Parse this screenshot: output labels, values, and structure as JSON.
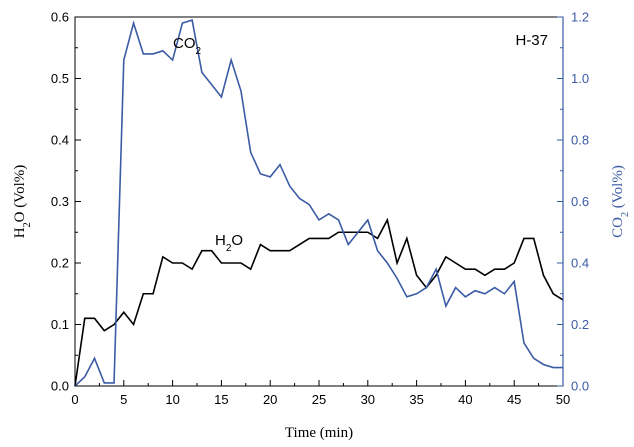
{
  "chart_data": {
    "type": "line",
    "title": "",
    "panel_label": "H-37",
    "xlabel": "Time (min)",
    "ylabel_left": {
      "main": "H",
      "sub": "2",
      "rest": "O (Vol%)"
    },
    "ylabel_right": {
      "main": "CO",
      "sub": "2",
      "rest": " (Vol%)"
    },
    "xlim": [
      0,
      50
    ],
    "ylim_left": [
      0,
      0.6
    ],
    "ylim_right": [
      0,
      1.2
    ],
    "x_ticks": [
      0,
      5,
      10,
      15,
      20,
      25,
      30,
      35,
      40,
      45,
      50
    ],
    "x_tick_labels": [
      "0",
      "5",
      "10",
      "15",
      "20",
      "25",
      "30",
      "35",
      "40",
      "45",
      "50"
    ],
    "y_left_ticks": [
      0,
      0.1,
      0.2,
      0.3,
      0.4,
      0.5,
      0.6
    ],
    "y_left_tick_labels": [
      "0.0",
      "0.1",
      "0.2",
      "0.3",
      "0.4",
      "0.5",
      "0.6"
    ],
    "y_right_ticks": [
      0,
      0.2,
      0.4,
      0.6,
      0.8,
      1.0,
      1.2
    ],
    "y_right_tick_labels": [
      "0.0",
      "0.2",
      "0.4",
      "0.6",
      "0.8",
      "1.0",
      "1.2"
    ],
    "grid": false,
    "series": [
      {
        "axis": "left",
        "color": "#000000",
        "label": {
          "main": "H",
          "sub": "2",
          "rest": "O"
        },
        "x": [
          0,
          1,
          2,
          3,
          4,
          5,
          6,
          7,
          8,
          9,
          10,
          11,
          12,
          13,
          14,
          15,
          16,
          17,
          18,
          19,
          20,
          21,
          22,
          23,
          24,
          25,
          26,
          27,
          28,
          29,
          30,
          31,
          32,
          33,
          34,
          35,
          36,
          37,
          38,
          39,
          40,
          41,
          42,
          43,
          44,
          45,
          46,
          47,
          48,
          49,
          50
        ],
        "y": [
          0,
          0.11,
          0.11,
          0.09,
          0.1,
          0.12,
          0.1,
          0.15,
          0.15,
          0.21,
          0.2,
          0.2,
          0.19,
          0.22,
          0.22,
          0.2,
          0.2,
          0.2,
          0.19,
          0.23,
          0.22,
          0.22,
          0.22,
          0.23,
          0.24,
          0.24,
          0.24,
          0.25,
          0.25,
          0.25,
          0.25,
          0.24,
          0.27,
          0.2,
          0.24,
          0.18,
          0.16,
          0.18,
          0.21,
          0.2,
          0.19,
          0.19,
          0.18,
          0.19,
          0.19,
          0.2,
          0.24,
          0.24,
          0.18,
          0.15,
          0.14
        ]
      },
      {
        "axis": "right",
        "color": "#3b5ba5",
        "label": {
          "main": "CO",
          "sub": "2",
          "rest": ""
        },
        "x": [
          0,
          1,
          2,
          3,
          4,
          5,
          6,
          7,
          8,
          9,
          10,
          11,
          12,
          13,
          14,
          15,
          16,
          17,
          18,
          19,
          20,
          21,
          22,
          23,
          24,
          25,
          26,
          27,
          28,
          29,
          30,
          31,
          32,
          33,
          34,
          35,
          36,
          37,
          38,
          39,
          40,
          41,
          42,
          43,
          44,
          45,
          46,
          47,
          48,
          49,
          50
        ],
        "y": [
          0,
          0.03,
          0.09,
          0.01,
          0.01,
          1.06,
          1.18,
          1.08,
          1.08,
          1.09,
          1.06,
          1.18,
          1.19,
          1.02,
          0.98,
          0.94,
          1.06,
          0.96,
          0.76,
          0.69,
          0.68,
          0.72,
          0.65,
          0.61,
          0.59,
          0.54,
          0.56,
          0.54,
          0.46,
          0.5,
          0.54,
          0.44,
          0.4,
          0.35,
          0.29,
          0.3,
          0.32,
          0.38,
          0.26,
          0.32,
          0.29,
          0.31,
          0.3,
          0.32,
          0.3,
          0.34,
          0.14,
          0.09,
          0.07,
          0.06,
          0.06
        ]
      }
    ]
  }
}
